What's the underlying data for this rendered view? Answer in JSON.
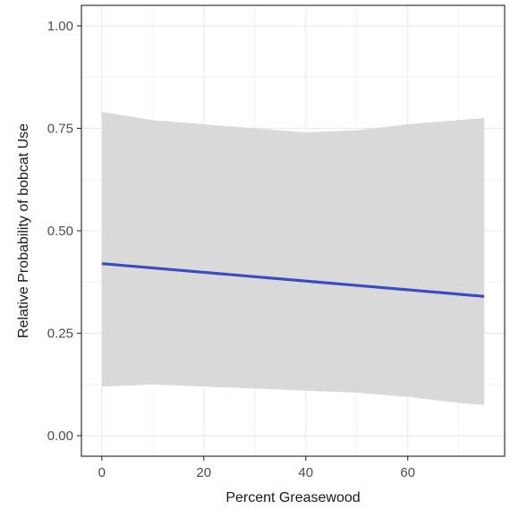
{
  "chart_data": {
    "type": "line",
    "title": "",
    "xlabel": "Percent Greasewood",
    "ylabel": "Relative Probability of bobcat Use",
    "xlim": [
      -4,
      79
    ],
    "ylim": [
      -0.05,
      1.05
    ],
    "x_ticks": [
      0,
      20,
      40,
      60
    ],
    "x_tick_labels": [
      "0",
      "20",
      "40",
      "60"
    ],
    "y_ticks": [
      0,
      0.25,
      0.5,
      0.75,
      1.0
    ],
    "y_tick_labels": [
      "0.00",
      "0.25",
      "0.50",
      "0.75",
      "1.00"
    ],
    "grid": true,
    "legend": "none",
    "colors": {
      "line": "#3b4cc0",
      "ribbon": "#d9d9d9",
      "grid": "#ebebeb",
      "panel_border": "#333333"
    },
    "series": [
      {
        "x": [
          0,
          75
        ],
        "y": [
          0.42,
          0.34
        ]
      }
    ],
    "confidence_band": {
      "x": [
        0,
        10,
        20,
        30,
        40,
        50,
        60,
        70,
        75
      ],
      "upper": [
        0.79,
        0.77,
        0.76,
        0.75,
        0.74,
        0.745,
        0.76,
        0.77,
        0.775
      ],
      "lower": [
        0.12,
        0.125,
        0.12,
        0.115,
        0.11,
        0.105,
        0.095,
        0.08,
        0.075
      ]
    }
  }
}
